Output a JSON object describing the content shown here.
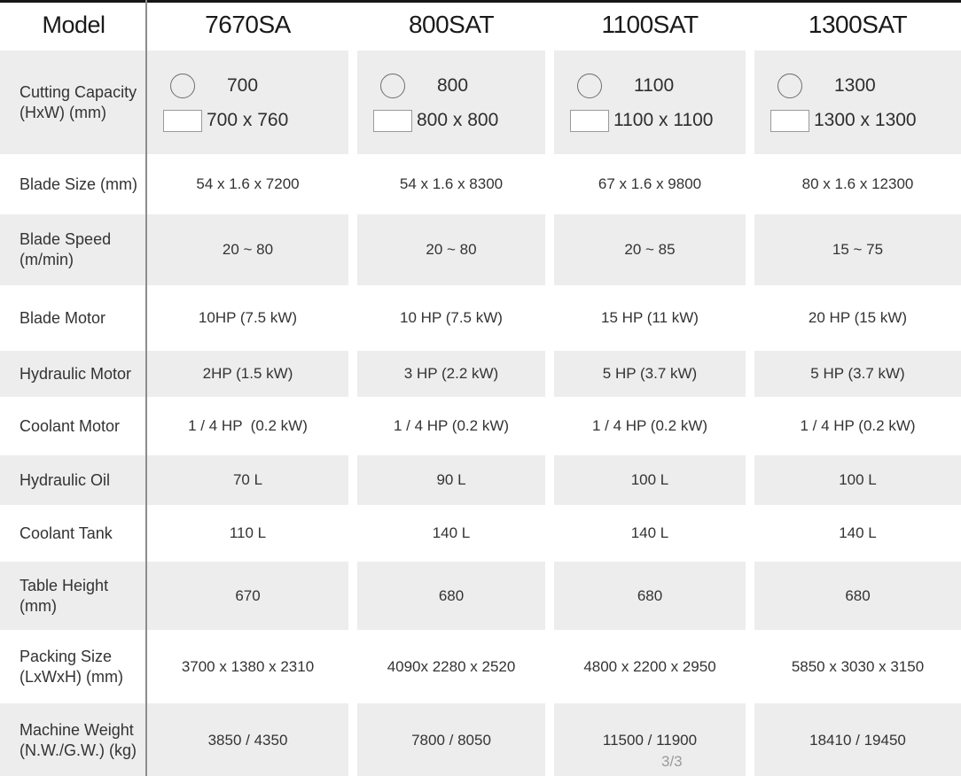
{
  "page": {
    "indicator": "3/3"
  },
  "colors": {
    "row_shade": "#ededed",
    "divider": "#8d8d8d",
    "header_text": "#1a1a1a",
    "body_text": "#333333",
    "page_indicator_text": "#9b9b9b"
  },
  "icons": {
    "round_capacity": "circle-outline-icon",
    "rect_capacity": "rectangle-outline-icon"
  },
  "table": {
    "header": {
      "model_label": "Model",
      "models": [
        "7670SA",
        "800SAT",
        "1100SAT",
        "1300SAT"
      ]
    },
    "capacity_row": {
      "label_lines": [
        "Cutting Capacity",
        "(HxW) (mm)"
      ],
      "cells": [
        {
          "round": "700",
          "rect": "700 x 760"
        },
        {
          "round": "800",
          "rect": "800 x 800"
        },
        {
          "round": "1100",
          "rect": "1100 x 1100"
        },
        {
          "round": "1300",
          "rect": "1300 x 1300"
        }
      ]
    },
    "rows": [
      {
        "label_lines": [
          "Blade Size (mm)"
        ],
        "values": [
          "54 x 1.6 x 7200",
          "54 x 1.6 x 8300",
          "67 x 1.6 x 9800",
          "80 x 1.6 x 12300"
        ]
      },
      {
        "label_lines": [
          "Blade Speed",
          "(m/min)"
        ],
        "values": [
          "20 ~ 80",
          "20 ~ 80",
          "20 ~ 85",
          "15 ~ 75"
        ]
      },
      {
        "label_lines": [
          "Blade Motor"
        ],
        "values": [
          "10HP (7.5 kW)",
          "10 HP (7.5 kW)",
          "15 HP (11 kW)",
          "20 HP (15 kW)"
        ]
      },
      {
        "label_lines": [
          "Hydraulic Motor"
        ],
        "values": [
          "2HP (1.5 kW)",
          "3 HP (2.2 kW)",
          "5 HP (3.7 kW)",
          "5 HP (3.7 kW)"
        ]
      },
      {
        "label_lines": [
          "Coolant Motor"
        ],
        "values": [
          "1 / 4 HP  (0.2 kW)",
          "1 / 4 HP (0.2 kW)",
          "1 / 4 HP (0.2 kW)",
          "1 / 4 HP (0.2 kW)"
        ]
      },
      {
        "label_lines": [
          "Hydraulic Oil"
        ],
        "values": [
          "70 L",
          "90 L",
          "100 L",
          "100 L"
        ]
      },
      {
        "label_lines": [
          "Coolant Tank"
        ],
        "values": [
          "110 L",
          "140 L",
          "140 L",
          "140 L"
        ]
      },
      {
        "label_lines": [
          "Table Height",
          "(mm)"
        ],
        "values": [
          "670",
          "680",
          "680",
          "680"
        ]
      },
      {
        "label_lines": [
          "Packing Size",
          "(LxWxH) (mm)"
        ],
        "values": [
          "3700 x 1380 x 2310",
          "4090x 2280 x 2520",
          "4800 x 2200 x 2950",
          "5850 x 3030 x 3150"
        ]
      },
      {
        "label_lines": [
          "Machine Weight",
          "(N.W./G.W.) (kg)"
        ],
        "values": [
          "3850 / 4350",
          "7800 / 8050",
          "11500 / 11900",
          "18410 / 19450"
        ]
      }
    ]
  }
}
